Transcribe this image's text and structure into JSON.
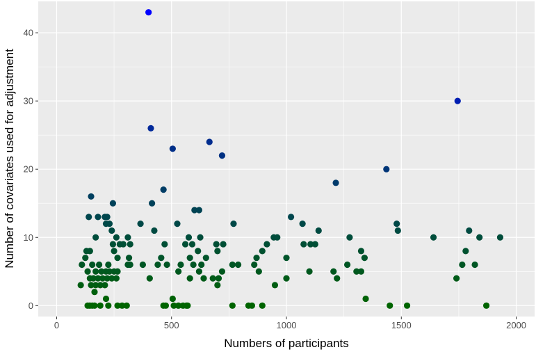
{
  "chart_data": {
    "type": "scatter",
    "title": "",
    "xlabel": "Numbers of participants",
    "ylabel": "Number of covariates used for adjustment",
    "xlim": [
      -80,
      2080
    ],
    "ylim": [
      -1.6,
      44.6
    ],
    "xticks": [
      "0",
      "500",
      "1000",
      "1500",
      "2000"
    ],
    "yticks": [
      "0",
      "10",
      "20",
      "30",
      "40"
    ],
    "grid": true,
    "legend": "none",
    "color_scale": {
      "low": "#006400",
      "high": "#0000ff",
      "min": 0,
      "max": 43
    },
    "points": [
      {
        "x": 400,
        "y": 43
      },
      {
        "x": 1745,
        "y": 30
      },
      {
        "x": 410,
        "y": 26
      },
      {
        "x": 665,
        "y": 24
      },
      {
        "x": 505,
        "y": 23
      },
      {
        "x": 720,
        "y": 22
      },
      {
        "x": 1435,
        "y": 20
      },
      {
        "x": 1215,
        "y": 18
      },
      {
        "x": 465,
        "y": 17
      },
      {
        "x": 150,
        "y": 16
      },
      {
        "x": 245,
        "y": 15
      },
      {
        "x": 415,
        "y": 15
      },
      {
        "x": 600,
        "y": 14
      },
      {
        "x": 620,
        "y": 14
      },
      {
        "x": 140,
        "y": 13
      },
      {
        "x": 180,
        "y": 13
      },
      {
        "x": 210,
        "y": 13
      },
      {
        "x": 220,
        "y": 13
      },
      {
        "x": 1020,
        "y": 13
      },
      {
        "x": 215,
        "y": 12
      },
      {
        "x": 230,
        "y": 12
      },
      {
        "x": 365,
        "y": 12
      },
      {
        "x": 525,
        "y": 12
      },
      {
        "x": 770,
        "y": 12
      },
      {
        "x": 1070,
        "y": 12
      },
      {
        "x": 1480,
        "y": 12
      },
      {
        "x": 240,
        "y": 11
      },
      {
        "x": 425,
        "y": 11
      },
      {
        "x": 1140,
        "y": 11
      },
      {
        "x": 1485,
        "y": 11
      },
      {
        "x": 1795,
        "y": 11
      },
      {
        "x": 170,
        "y": 10
      },
      {
        "x": 260,
        "y": 10
      },
      {
        "x": 310,
        "y": 10
      },
      {
        "x": 575,
        "y": 10
      },
      {
        "x": 625,
        "y": 10
      },
      {
        "x": 945,
        "y": 10
      },
      {
        "x": 960,
        "y": 10
      },
      {
        "x": 1275,
        "y": 10
      },
      {
        "x": 1640,
        "y": 10
      },
      {
        "x": 1840,
        "y": 10
      },
      {
        "x": 1930,
        "y": 10
      },
      {
        "x": 245,
        "y": 9
      },
      {
        "x": 275,
        "y": 9
      },
      {
        "x": 290,
        "y": 9
      },
      {
        "x": 320,
        "y": 9
      },
      {
        "x": 470,
        "y": 9
      },
      {
        "x": 560,
        "y": 9
      },
      {
        "x": 590,
        "y": 9
      },
      {
        "x": 695,
        "y": 9
      },
      {
        "x": 725,
        "y": 9
      },
      {
        "x": 915,
        "y": 9
      },
      {
        "x": 1075,
        "y": 9
      },
      {
        "x": 1105,
        "y": 9
      },
      {
        "x": 1125,
        "y": 9
      },
      {
        "x": 130,
        "y": 8
      },
      {
        "x": 145,
        "y": 8
      },
      {
        "x": 250,
        "y": 8
      },
      {
        "x": 615,
        "y": 8
      },
      {
        "x": 700,
        "y": 8
      },
      {
        "x": 895,
        "y": 8
      },
      {
        "x": 1325,
        "y": 8
      },
      {
        "x": 1780,
        "y": 8
      },
      {
        "x": 125,
        "y": 7
      },
      {
        "x": 265,
        "y": 7
      },
      {
        "x": 315,
        "y": 7
      },
      {
        "x": 455,
        "y": 7
      },
      {
        "x": 580,
        "y": 7
      },
      {
        "x": 650,
        "y": 7
      },
      {
        "x": 870,
        "y": 7
      },
      {
        "x": 1000,
        "y": 7
      },
      {
        "x": 1340,
        "y": 7
      },
      {
        "x": 110,
        "y": 6
      },
      {
        "x": 155,
        "y": 6
      },
      {
        "x": 185,
        "y": 6
      },
      {
        "x": 225,
        "y": 6
      },
      {
        "x": 310,
        "y": 6
      },
      {
        "x": 320,
        "y": 6
      },
      {
        "x": 375,
        "y": 6
      },
      {
        "x": 440,
        "y": 6
      },
      {
        "x": 480,
        "y": 6
      },
      {
        "x": 540,
        "y": 6
      },
      {
        "x": 595,
        "y": 6
      },
      {
        "x": 630,
        "y": 6
      },
      {
        "x": 765,
        "y": 6
      },
      {
        "x": 790,
        "y": 6
      },
      {
        "x": 860,
        "y": 6
      },
      {
        "x": 1265,
        "y": 6
      },
      {
        "x": 1765,
        "y": 6
      },
      {
        "x": 1820,
        "y": 6
      },
      {
        "x": 135,
        "y": 5
      },
      {
        "x": 170,
        "y": 5
      },
      {
        "x": 195,
        "y": 5
      },
      {
        "x": 215,
        "y": 5
      },
      {
        "x": 230,
        "y": 5
      },
      {
        "x": 250,
        "y": 5
      },
      {
        "x": 265,
        "y": 5
      },
      {
        "x": 530,
        "y": 5
      },
      {
        "x": 620,
        "y": 5
      },
      {
        "x": 720,
        "y": 5
      },
      {
        "x": 880,
        "y": 5
      },
      {
        "x": 1100,
        "y": 5
      },
      {
        "x": 1205,
        "y": 5
      },
      {
        "x": 1305,
        "y": 5
      },
      {
        "x": 1325,
        "y": 5
      },
      {
        "x": 145,
        "y": 4
      },
      {
        "x": 160,
        "y": 4
      },
      {
        "x": 180,
        "y": 4
      },
      {
        "x": 200,
        "y": 4
      },
      {
        "x": 220,
        "y": 4
      },
      {
        "x": 240,
        "y": 4
      },
      {
        "x": 260,
        "y": 4
      },
      {
        "x": 405,
        "y": 4
      },
      {
        "x": 580,
        "y": 4
      },
      {
        "x": 640,
        "y": 4
      },
      {
        "x": 680,
        "y": 4
      },
      {
        "x": 705,
        "y": 4
      },
      {
        "x": 1000,
        "y": 4
      },
      {
        "x": 1220,
        "y": 4
      },
      {
        "x": 1740,
        "y": 4
      },
      {
        "x": 105,
        "y": 3
      },
      {
        "x": 150,
        "y": 3
      },
      {
        "x": 170,
        "y": 3
      },
      {
        "x": 190,
        "y": 3
      },
      {
        "x": 210,
        "y": 3
      },
      {
        "x": 700,
        "y": 3
      },
      {
        "x": 950,
        "y": 3
      },
      {
        "x": 165,
        "y": 2
      },
      {
        "x": 215,
        "y": 1
      },
      {
        "x": 505,
        "y": 1
      },
      {
        "x": 1345,
        "y": 1
      },
      {
        "x": 135,
        "y": 0
      },
      {
        "x": 145,
        "y": 0
      },
      {
        "x": 155,
        "y": 0
      },
      {
        "x": 165,
        "y": 0
      },
      {
        "x": 190,
        "y": 0
      },
      {
        "x": 225,
        "y": 0
      },
      {
        "x": 265,
        "y": 0
      },
      {
        "x": 285,
        "y": 0
      },
      {
        "x": 305,
        "y": 0
      },
      {
        "x": 465,
        "y": 0
      },
      {
        "x": 475,
        "y": 0
      },
      {
        "x": 510,
        "y": 0
      },
      {
        "x": 530,
        "y": 0
      },
      {
        "x": 550,
        "y": 0
      },
      {
        "x": 565,
        "y": 0
      },
      {
        "x": 570,
        "y": 0
      },
      {
        "x": 765,
        "y": 0
      },
      {
        "x": 835,
        "y": 0
      },
      {
        "x": 850,
        "y": 0
      },
      {
        "x": 895,
        "y": 0
      },
      {
        "x": 1450,
        "y": 0
      },
      {
        "x": 1525,
        "y": 0
      },
      {
        "x": 1870,
        "y": 0
      }
    ]
  }
}
